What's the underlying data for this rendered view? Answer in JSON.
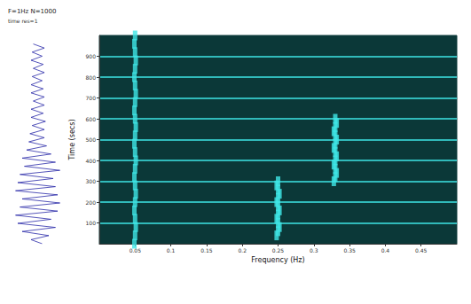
{
  "chart_data": [
    {
      "type": "waveform",
      "title": "F=1Hz N=1000",
      "subtitle": "time res=1",
      "x": [
        0,
        20,
        40,
        60,
        80,
        100,
        120,
        140,
        160,
        180,
        200,
        220,
        240,
        260,
        280,
        300,
        320,
        340,
        360,
        380,
        400,
        420,
        440,
        460,
        480,
        500,
        520,
        540,
        560,
        580,
        600,
        620,
        640,
        660,
        680,
        700,
        720,
        740,
        760,
        780,
        800,
        820,
        840,
        860,
        880,
        900,
        920,
        940,
        960,
        980
      ],
      "values": [
        0.2,
        -0.3,
        0.5,
        -0.7,
        0.8,
        -0.9,
        0.6,
        -1.0,
        0.9,
        -0.8,
        1.0,
        -0.7,
        0.9,
        -1.0,
        0.8,
        -0.9,
        0.7,
        -0.8,
        1.0,
        -0.6,
        0.8,
        -0.7,
        0.6,
        -0.5,
        0.4,
        -0.4,
        0.3,
        -0.35,
        0.3,
        -0.25,
        0.35,
        -0.3,
        0.25,
        -0.3,
        0.3,
        -0.2,
        0.3,
        -0.3,
        0.25,
        -0.3,
        0.2,
        -0.25,
        0.3,
        -0.2,
        0.25,
        -0.3,
        0.2,
        -0.25,
        0.3,
        -0.2
      ],
      "xlim": [
        0,
        1000
      ],
      "ylim": [
        -1.1,
        1.1
      ],
      "color": "#2a2aa8",
      "tick_labels": false
    },
    {
      "type": "scatter",
      "x_label": "Frequency (Hz)",
      "y_label": "Time (secs)",
      "x": [
        0.049,
        0.05,
        0.051,
        0.05,
        0.049,
        0.05,
        0.051,
        0.05,
        0.049,
        0.05,
        0.051,
        0.05,
        0.049,
        0.05,
        0.051,
        0.05,
        0.049,
        0.05,
        0.051,
        0.05,
        0.049,
        0.05,
        0.051,
        0.05,
        0.049,
        0.05,
        0.248,
        0.25,
        0.252,
        0.25,
        0.248,
        0.25,
        0.252,
        0.25,
        0.248,
        0.25,
        0.252,
        0.25,
        0.248,
        0.25,
        0.328,
        0.33,
        0.332,
        0.33,
        0.328,
        0.33,
        0.332,
        0.33,
        0.328,
        0.33,
        0.332,
        0.33,
        0.328,
        0.33,
        0.332,
        0.33
      ],
      "values": [
        0,
        40,
        80,
        120,
        160,
        200,
        240,
        280,
        320,
        360,
        400,
        440,
        480,
        520,
        560,
        600,
        640,
        680,
        720,
        760,
        800,
        840,
        880,
        920,
        960,
        1000,
        40,
        60,
        80,
        100,
        120,
        140,
        160,
        180,
        200,
        220,
        240,
        260,
        280,
        300,
        300,
        320,
        340,
        360,
        380,
        400,
        420,
        440,
        460,
        480,
        500,
        520,
        540,
        560,
        580,
        600
      ],
      "xlim": [
        0,
        0.5
      ],
      "xticks": [
        0.05,
        0.1,
        0.15,
        0.2,
        0.25,
        0.3,
        0.35,
        0.4,
        0.45
      ],
      "ylim": [
        0,
        1000
      ],
      "yticks": [
        100,
        200,
        300,
        400,
        500,
        600,
        700,
        800,
        900
      ],
      "color": "#3fe6e6",
      "marker": "square",
      "grid": true
    }
  ]
}
